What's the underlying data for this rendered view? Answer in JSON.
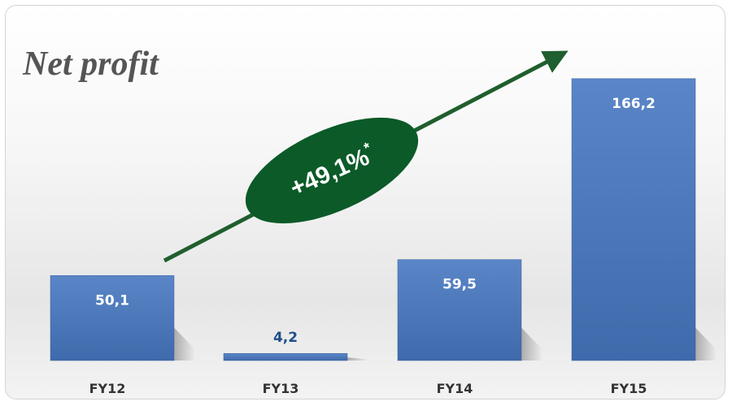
{
  "chart_data": {
    "type": "bar",
    "title": "Net profit",
    "categories": [
      "FY12",
      "FY13",
      "FY14",
      "FY15"
    ],
    "values": [
      50.1,
      4.2,
      59.5,
      166.2
    ],
    "value_labels": [
      "50,1",
      "4,2",
      "59,5",
      "166,2"
    ],
    "ylim": [
      0,
      180
    ],
    "grid": false,
    "legend": "none",
    "annotation": {
      "text": "+49,1%",
      "superscript": "*"
    }
  },
  "colors": {
    "bar": "#4a74b6",
    "bar_dark": "#3a5f9a",
    "label_inside": "#ffffff",
    "label_outside": "#1f4e8a",
    "tick": "#333333",
    "title": "#555555",
    "arrow": "#1f5e2e",
    "ellipse": "#0b5a28"
  }
}
